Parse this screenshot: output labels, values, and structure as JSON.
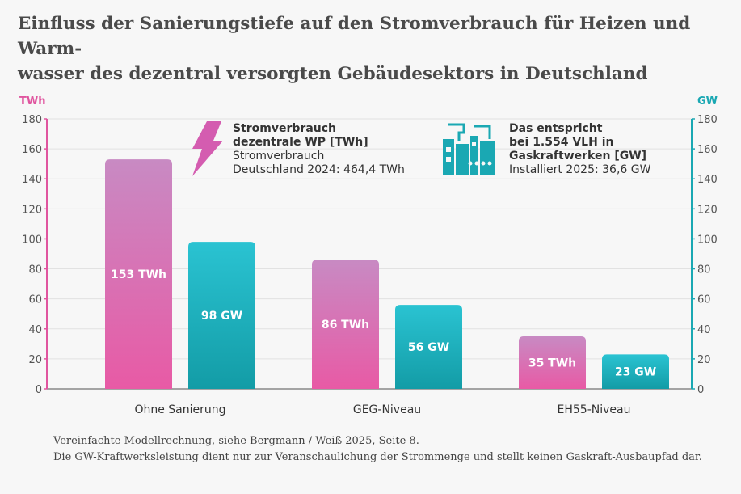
{
  "title": {
    "line1": "Einfluss der Sanierungstiefe auf den Stromverbrauch für Heizen und Warm-",
    "line2": "wasser des dezentral versorgten Gebäudesektors in Deutschland"
  },
  "legend": {
    "wp": {
      "icon": "lightning-icon",
      "line1": "Stromverbrauch",
      "line2": "dezentrale WP [TWh]",
      "line3": "Stromverbrauch",
      "line4": "Deutschland 2024: 464,4 TWh"
    },
    "gw": {
      "icon": "power-plant-icon",
      "line1": "Das entspricht",
      "line2": "bei 1.554 VLH in",
      "line3": "Gaskraftwerken [GW]",
      "line4": "Installiert 2025: 36,6 GW"
    }
  },
  "footnote": {
    "line1": "Vereinfachte Modellrechnung, siehe Bergmann / Weiß 2025, Seite 8.",
    "line2": "Die GW-Kraftwerksleistung dient nur zur Veranschaulichung der Strommenge und stellt keinen Gaskraft-Ausbaupfad dar."
  },
  "colors": {
    "pink_top": "#c88ac3",
    "pink_bottom": "#e85aa5",
    "teal_top": "#2ac3d2",
    "teal_bottom": "#139ca6",
    "left_axis": "#e0559f",
    "right_axis": "#1aa8b3"
  },
  "chart_data": {
    "type": "bar",
    "categories": [
      "Ohne Sanierung",
      "GEG-Niveau",
      "EH55-Niveau"
    ],
    "series": [
      {
        "name": "Stromverbrauch dezentrale WP [TWh]",
        "axis": "left",
        "unit": "TWh",
        "values": [
          153,
          86,
          35
        ],
        "labels": [
          "153 TWh",
          "86 TWh",
          "35 TWh"
        ]
      },
      {
        "name": "Gaskraftwerke [GW]",
        "axis": "right",
        "unit": "GW",
        "values": [
          98,
          56,
          23
        ],
        "labels": [
          "98 GW",
          "56 GW",
          "23 GW"
        ]
      }
    ],
    "left_axis": {
      "label": "TWh",
      "ylim": [
        0,
        180
      ],
      "ticks": [
        0,
        20,
        40,
        60,
        80,
        100,
        120,
        140,
        160,
        180
      ]
    },
    "right_axis": {
      "label": "GW",
      "ylim": [
        0,
        180
      ],
      "ticks": [
        0,
        20,
        40,
        60,
        80,
        100,
        120,
        140,
        160,
        180
      ]
    },
    "grid": true
  }
}
